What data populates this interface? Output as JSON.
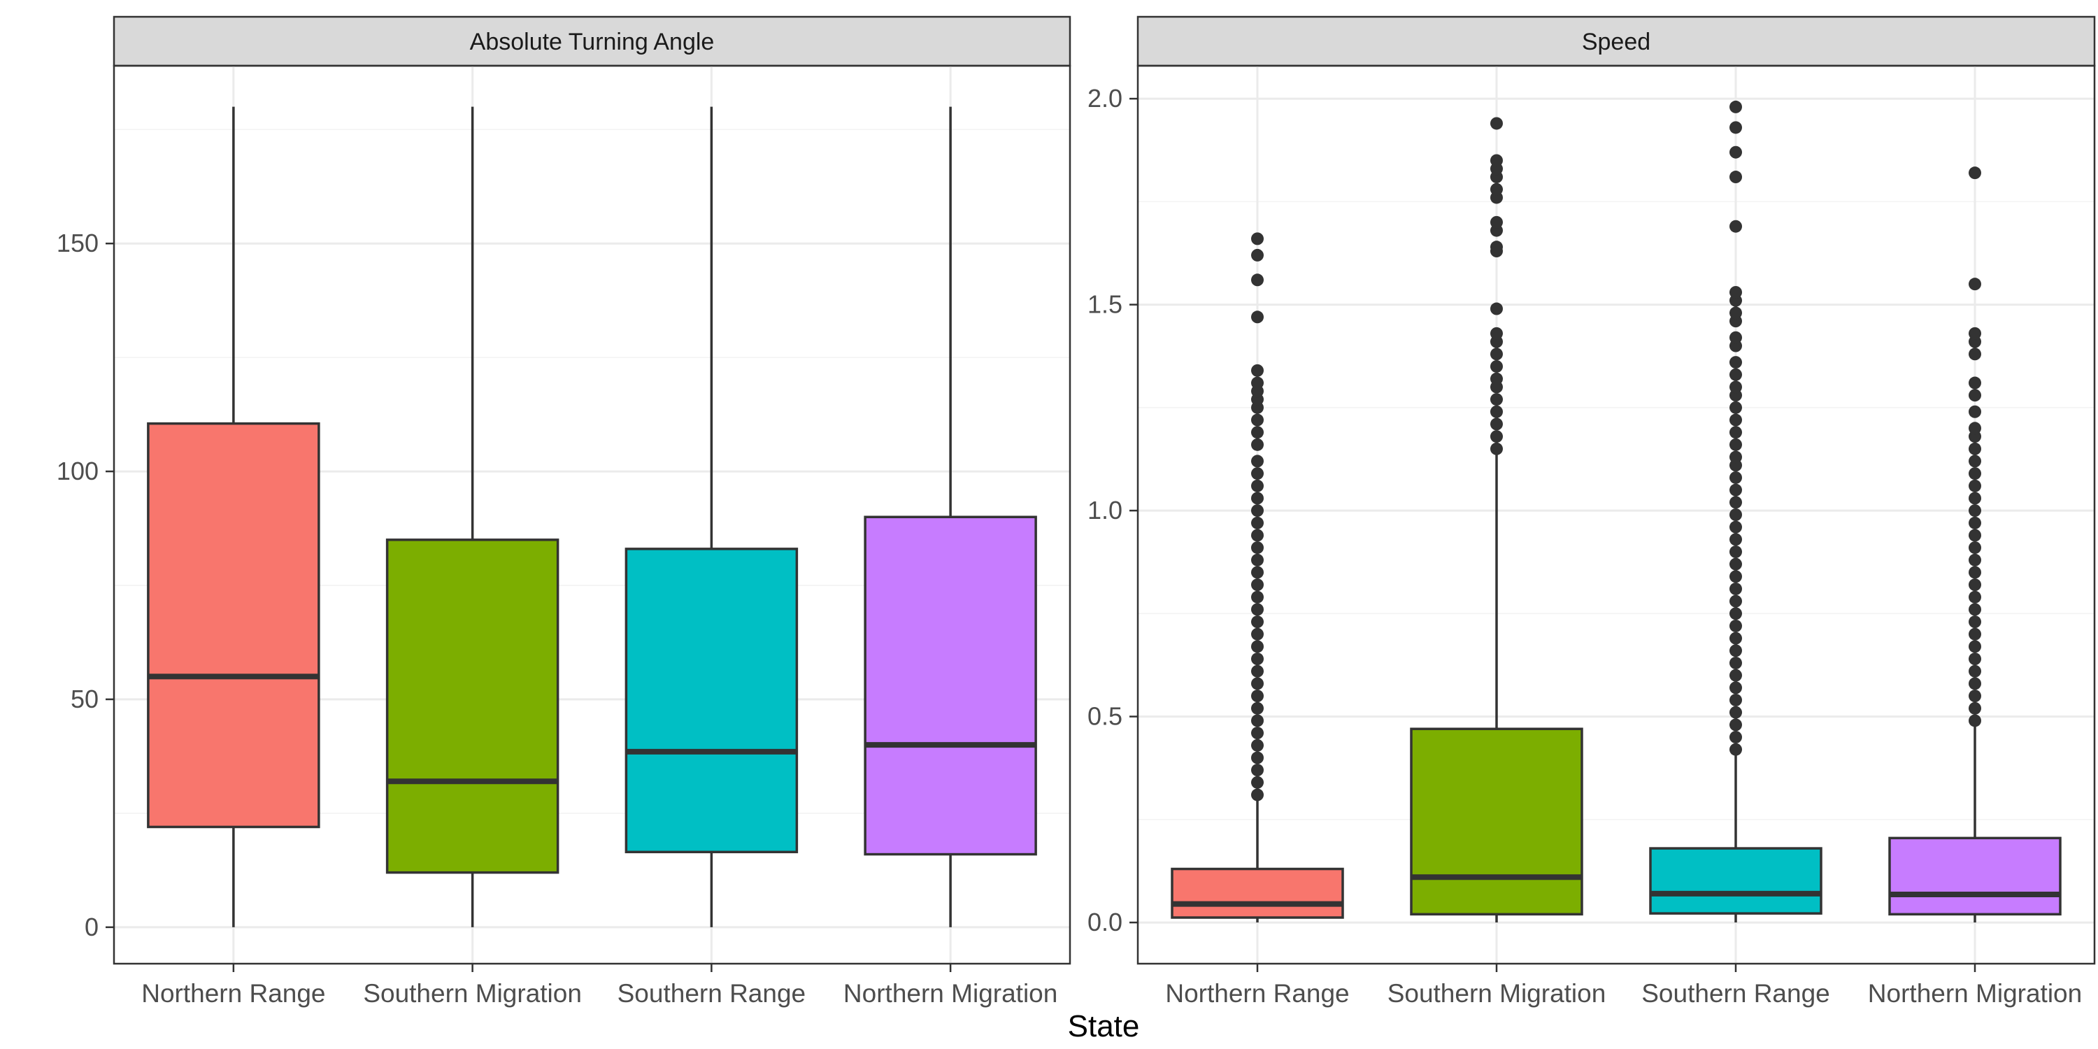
{
  "chart_data": {
    "type": "box",
    "xlabel": "State",
    "ylabel": "",
    "legend": "none",
    "grid": true,
    "categories": [
      "Northern Range",
      "Southern Migration",
      "Southern Range",
      "Northern Migration"
    ],
    "colors": {
      "Northern Range": "#F8766D",
      "Southern Migration": "#7CAE00",
      "Southern Range": "#00BFC4",
      "Northern Migration": "#C77CFF"
    },
    "panels": [
      {
        "title": "Absolute Turning Angle",
        "ylim": [
          -8,
          189
        ],
        "yticks": [
          0,
          50,
          100,
          150
        ],
        "ytick_labels": [
          "0",
          "50",
          "100",
          "150"
        ],
        "boxes": [
          {
            "category": "Northern Range",
            "min": 0,
            "q1": 22,
            "median": 55,
            "q3": 110.5,
            "max": 180,
            "outliers": []
          },
          {
            "category": "Southern Migration",
            "min": 0,
            "q1": 12,
            "median": 32,
            "q3": 85,
            "max": 180,
            "outliers": []
          },
          {
            "category": "Southern Range",
            "min": 0,
            "q1": 16.5,
            "median": 38.5,
            "q3": 83,
            "max": 180,
            "outliers": []
          },
          {
            "category": "Northern Migration",
            "min": 0,
            "q1": 16,
            "median": 40,
            "q3": 90,
            "max": 180,
            "outliers": []
          }
        ]
      },
      {
        "title": "Speed",
        "ylim": [
          -0.1,
          2.08
        ],
        "yticks": [
          0.0,
          0.5,
          1.0,
          1.5,
          2.0
        ],
        "ytick_labels": [
          "0.0",
          "0.5",
          "1.0",
          "1.5",
          "2.0"
        ],
        "boxes": [
          {
            "category": "Northern Range",
            "min": 0.0,
            "q1": 0.012,
            "median": 0.045,
            "q3": 0.13,
            "max": 0.3,
            "outliers": [
              0.31,
              0.34,
              0.37,
              0.4,
              0.43,
              0.46,
              0.49,
              0.52,
              0.55,
              0.58,
              0.61,
              0.64,
              0.67,
              0.7,
              0.73,
              0.76,
              0.79,
              0.82,
              0.85,
              0.88,
              0.91,
              0.94,
              0.97,
              1.0,
              1.03,
              1.06,
              1.09,
              1.12,
              1.16,
              1.19,
              1.22,
              1.25,
              1.27,
              1.29,
              1.31,
              1.34,
              1.47,
              1.56,
              1.62,
              1.66
            ]
          },
          {
            "category": "Southern Migration",
            "min": 0.0,
            "q1": 0.02,
            "median": 0.11,
            "q3": 0.47,
            "max": 1.14,
            "outliers": [
              1.15,
              1.18,
              1.21,
              1.24,
              1.27,
              1.3,
              1.32,
              1.35,
              1.38,
              1.41,
              1.43,
              1.49,
              1.63,
              1.64,
              1.68,
              1.7,
              1.76,
              1.78,
              1.81,
              1.83,
              1.85,
              1.94
            ]
          },
          {
            "category": "Southern Range",
            "min": 0.0,
            "q1": 0.022,
            "median": 0.07,
            "q3": 0.18,
            "max": 0.41,
            "outliers": [
              0.42,
              0.45,
              0.48,
              0.51,
              0.54,
              0.57,
              0.6,
              0.63,
              0.66,
              0.69,
              0.72,
              0.75,
              0.78,
              0.81,
              0.84,
              0.87,
              0.9,
              0.93,
              0.96,
              0.99,
              1.02,
              1.05,
              1.08,
              1.11,
              1.13,
              1.16,
              1.19,
              1.22,
              1.25,
              1.28,
              1.3,
              1.33,
              1.36,
              1.4,
              1.42,
              1.46,
              1.48,
              1.51,
              1.53,
              1.69,
              1.81,
              1.87,
              1.93,
              1.98
            ]
          },
          {
            "category": "Northern Migration",
            "min": 0.0,
            "q1": 0.02,
            "median": 0.068,
            "q3": 0.205,
            "max": 0.48,
            "outliers": [
              0.49,
              0.52,
              0.55,
              0.58,
              0.61,
              0.64,
              0.67,
              0.7,
              0.73,
              0.76,
              0.79,
              0.82,
              0.85,
              0.88,
              0.91,
              0.94,
              0.97,
              1.0,
              1.03,
              1.06,
              1.09,
              1.12,
              1.15,
              1.18,
              1.2,
              1.24,
              1.28,
              1.31,
              1.38,
              1.41,
              1.43,
              1.55,
              1.82
            ]
          }
        ]
      }
    ]
  }
}
